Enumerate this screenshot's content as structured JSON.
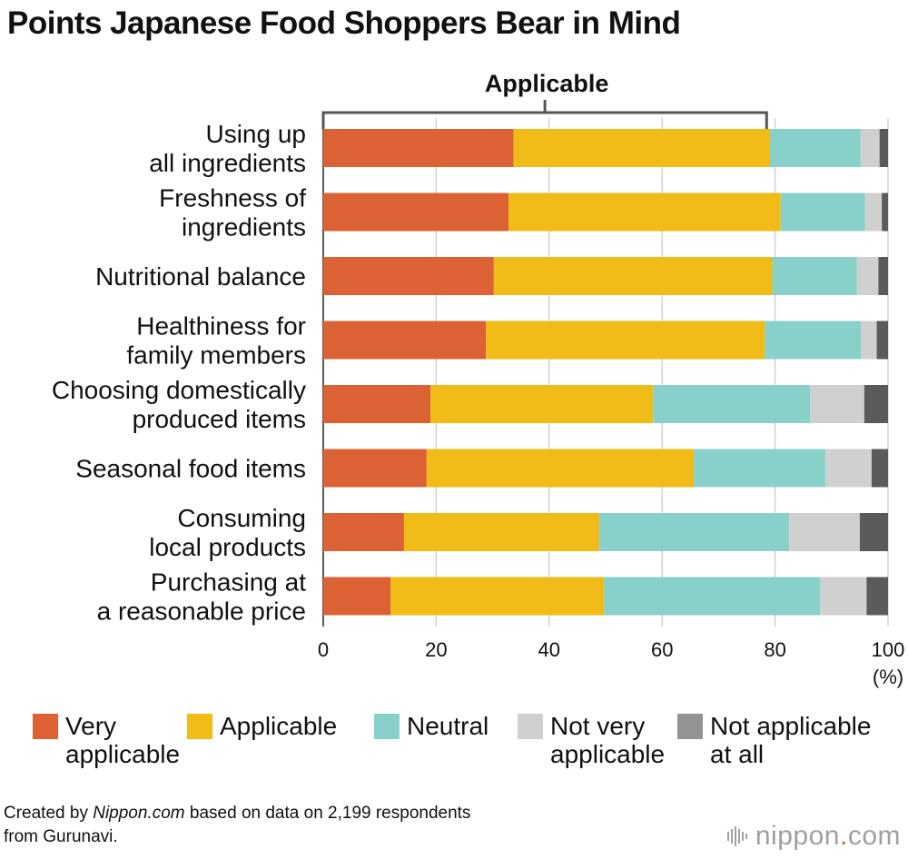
{
  "title": "Points Japanese Food Shoppers Bear in Mind",
  "chart_data": {
    "type": "bar",
    "orientation": "horizontal",
    "stacked": true,
    "categories": [
      [
        "Using up",
        "all ingredients"
      ],
      [
        "Freshness of",
        "ingredients"
      ],
      [
        "Nutritional balance"
      ],
      [
        "Healthiness for",
        "family members"
      ],
      [
        "Choosing domestically",
        "produced items"
      ],
      [
        "Seasonal food items"
      ],
      [
        "Consuming",
        "local products"
      ],
      [
        "Purchasing at",
        "a reasonable price"
      ]
    ],
    "series": [
      {
        "name": "Very applicable",
        "color": "#dc6235",
        "values": [
          33.7,
          32.8,
          30.2,
          28.8,
          19.0,
          18.3,
          14.3,
          11.9
        ]
      },
      {
        "name": "Applicable",
        "color": "#f1bb18",
        "values": [
          45.4,
          48.2,
          49.3,
          49.4,
          39.4,
          47.3,
          34.6,
          37.8
        ]
      },
      {
        "name": "Neutral",
        "color": "#88d1cb",
        "values": [
          16.0,
          14.9,
          15.0,
          17.0,
          27.8,
          23.3,
          33.6,
          38.3
        ]
      },
      {
        "name": "Not very applicable",
        "color": "#d0d0d0",
        "values": [
          3.4,
          3.0,
          3.8,
          2.8,
          9.6,
          8.2,
          12.5,
          8.2
        ]
      },
      {
        "name": "Not applicable at all",
        "color": "#5b5b5b",
        "values": [
          1.5,
          1.1,
          1.7,
          2.0,
          4.2,
          2.9,
          5.0,
          3.8
        ]
      }
    ],
    "xlim": [
      0,
      100
    ],
    "xticks": [
      "0",
      "20",
      "40",
      "60",
      "80",
      "100"
    ],
    "xunit": "(%)",
    "grid": true,
    "bracket": {
      "label": "Applicable",
      "from": 0,
      "to": 78.5
    },
    "legend": {
      "position": "bottom",
      "items": [
        {
          "label": "Very\napplicable",
          "color": "#dc6235"
        },
        {
          "label": "Applicable",
          "color": "#f1bb18"
        },
        {
          "label": "Neutral",
          "color": "#88d1cb"
        },
        {
          "label": "Not very\napplicable",
          "color": "#d0d0d0"
        },
        {
          "label": "Not applicable\nat all",
          "color": "#939393"
        }
      ]
    }
  },
  "footer": {
    "prefix": "Created by ",
    "source_site": "Nippon.com",
    "suffix": " based on data on 2,199 respondents",
    "line2": "from Gurunavi."
  },
  "logo": {
    "name": "nippon",
    "dot": ".",
    "tld": "com",
    "dot_color": "#dc6235"
  }
}
